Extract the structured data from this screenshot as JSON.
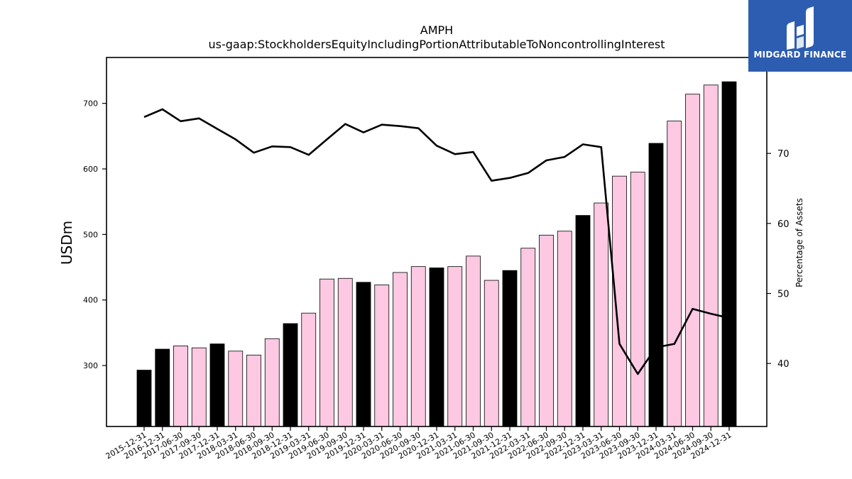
{
  "chart_data": {
    "type": "bar",
    "title": "AMPH",
    "subtitle": "us-gaap:StockholdersEquityIncludingPortionAttributableToNoncontrollingInterest",
    "ylabel": "USDm",
    "y2label": "Percentage of Assets",
    "ylim": [
      207,
      770
    ],
    "y2lim": [
      31.0,
      83.7
    ],
    "yticks": [
      "300",
      "400",
      "500",
      "600",
      "700"
    ],
    "y2ticks": [
      "40",
      "50",
      "60",
      "70"
    ],
    "categories": [
      "2015-12-31",
      "2016-12-31",
      "2017-06-30",
      "2017-09-30",
      "2017-12-31",
      "2018-03-31",
      "2018-06-30",
      "2018-09-30",
      "2018-12-31",
      "2019-03-31",
      "2019-06-30",
      "2019-09-30",
      "2019-12-31",
      "2020-03-31",
      "2020-06-30",
      "2020-09-30",
      "2020-12-31",
      "2021-03-31",
      "2021-06-30",
      "2021-09-30",
      "2021-12-31",
      "2022-03-31",
      "2022-06-30",
      "2022-09-30",
      "2022-12-31",
      "2023-03-31",
      "2023-06-30",
      "2023-09-30",
      "2023-12-31",
      "2024-03-31",
      "2024-06-30",
      "2024-09-30",
      "2024-12-31"
    ],
    "series": [
      {
        "kind": "bar",
        "values": [
          293,
          325,
          330,
          327,
          333,
          322,
          316,
          341,
          364,
          380,
          432,
          433,
          427,
          423,
          442,
          451,
          449,
          451,
          467,
          430,
          445,
          479,
          499,
          505,
          529,
          548,
          589,
          595,
          639,
          673,
          714,
          728,
          733
        ],
        "annual_color": "#000000",
        "quarterly_color": "#fcc8e2",
        "annual_flags": [
          true,
          true,
          false,
          false,
          true,
          false,
          false,
          false,
          true,
          false,
          false,
          false,
          true,
          false,
          false,
          false,
          true,
          false,
          false,
          false,
          true,
          false,
          false,
          false,
          true,
          false,
          false,
          false,
          true,
          false,
          false,
          false,
          true
        ]
      },
      {
        "kind": "line",
        "axis": "right",
        "color": "#000000",
        "values": [
          75.2,
          76.3,
          74.6,
          75.0,
          73.5,
          72.0,
          70.1,
          71.0,
          70.9,
          69.8,
          72.0,
          74.2,
          73.0,
          74.1,
          73.9,
          73.6,
          71.1,
          69.9,
          70.2,
          66.1,
          66.5,
          67.2,
          69.0,
          69.5,
          71.3,
          70.9,
          42.8,
          38.5,
          42.3,
          42.8,
          47.8,
          47.1,
          46.5
        ]
      }
    ],
    "grid": false,
    "legend": "none"
  },
  "logo": {
    "text": "MIDGARD FINANCE",
    "background": "#2d5db0"
  }
}
